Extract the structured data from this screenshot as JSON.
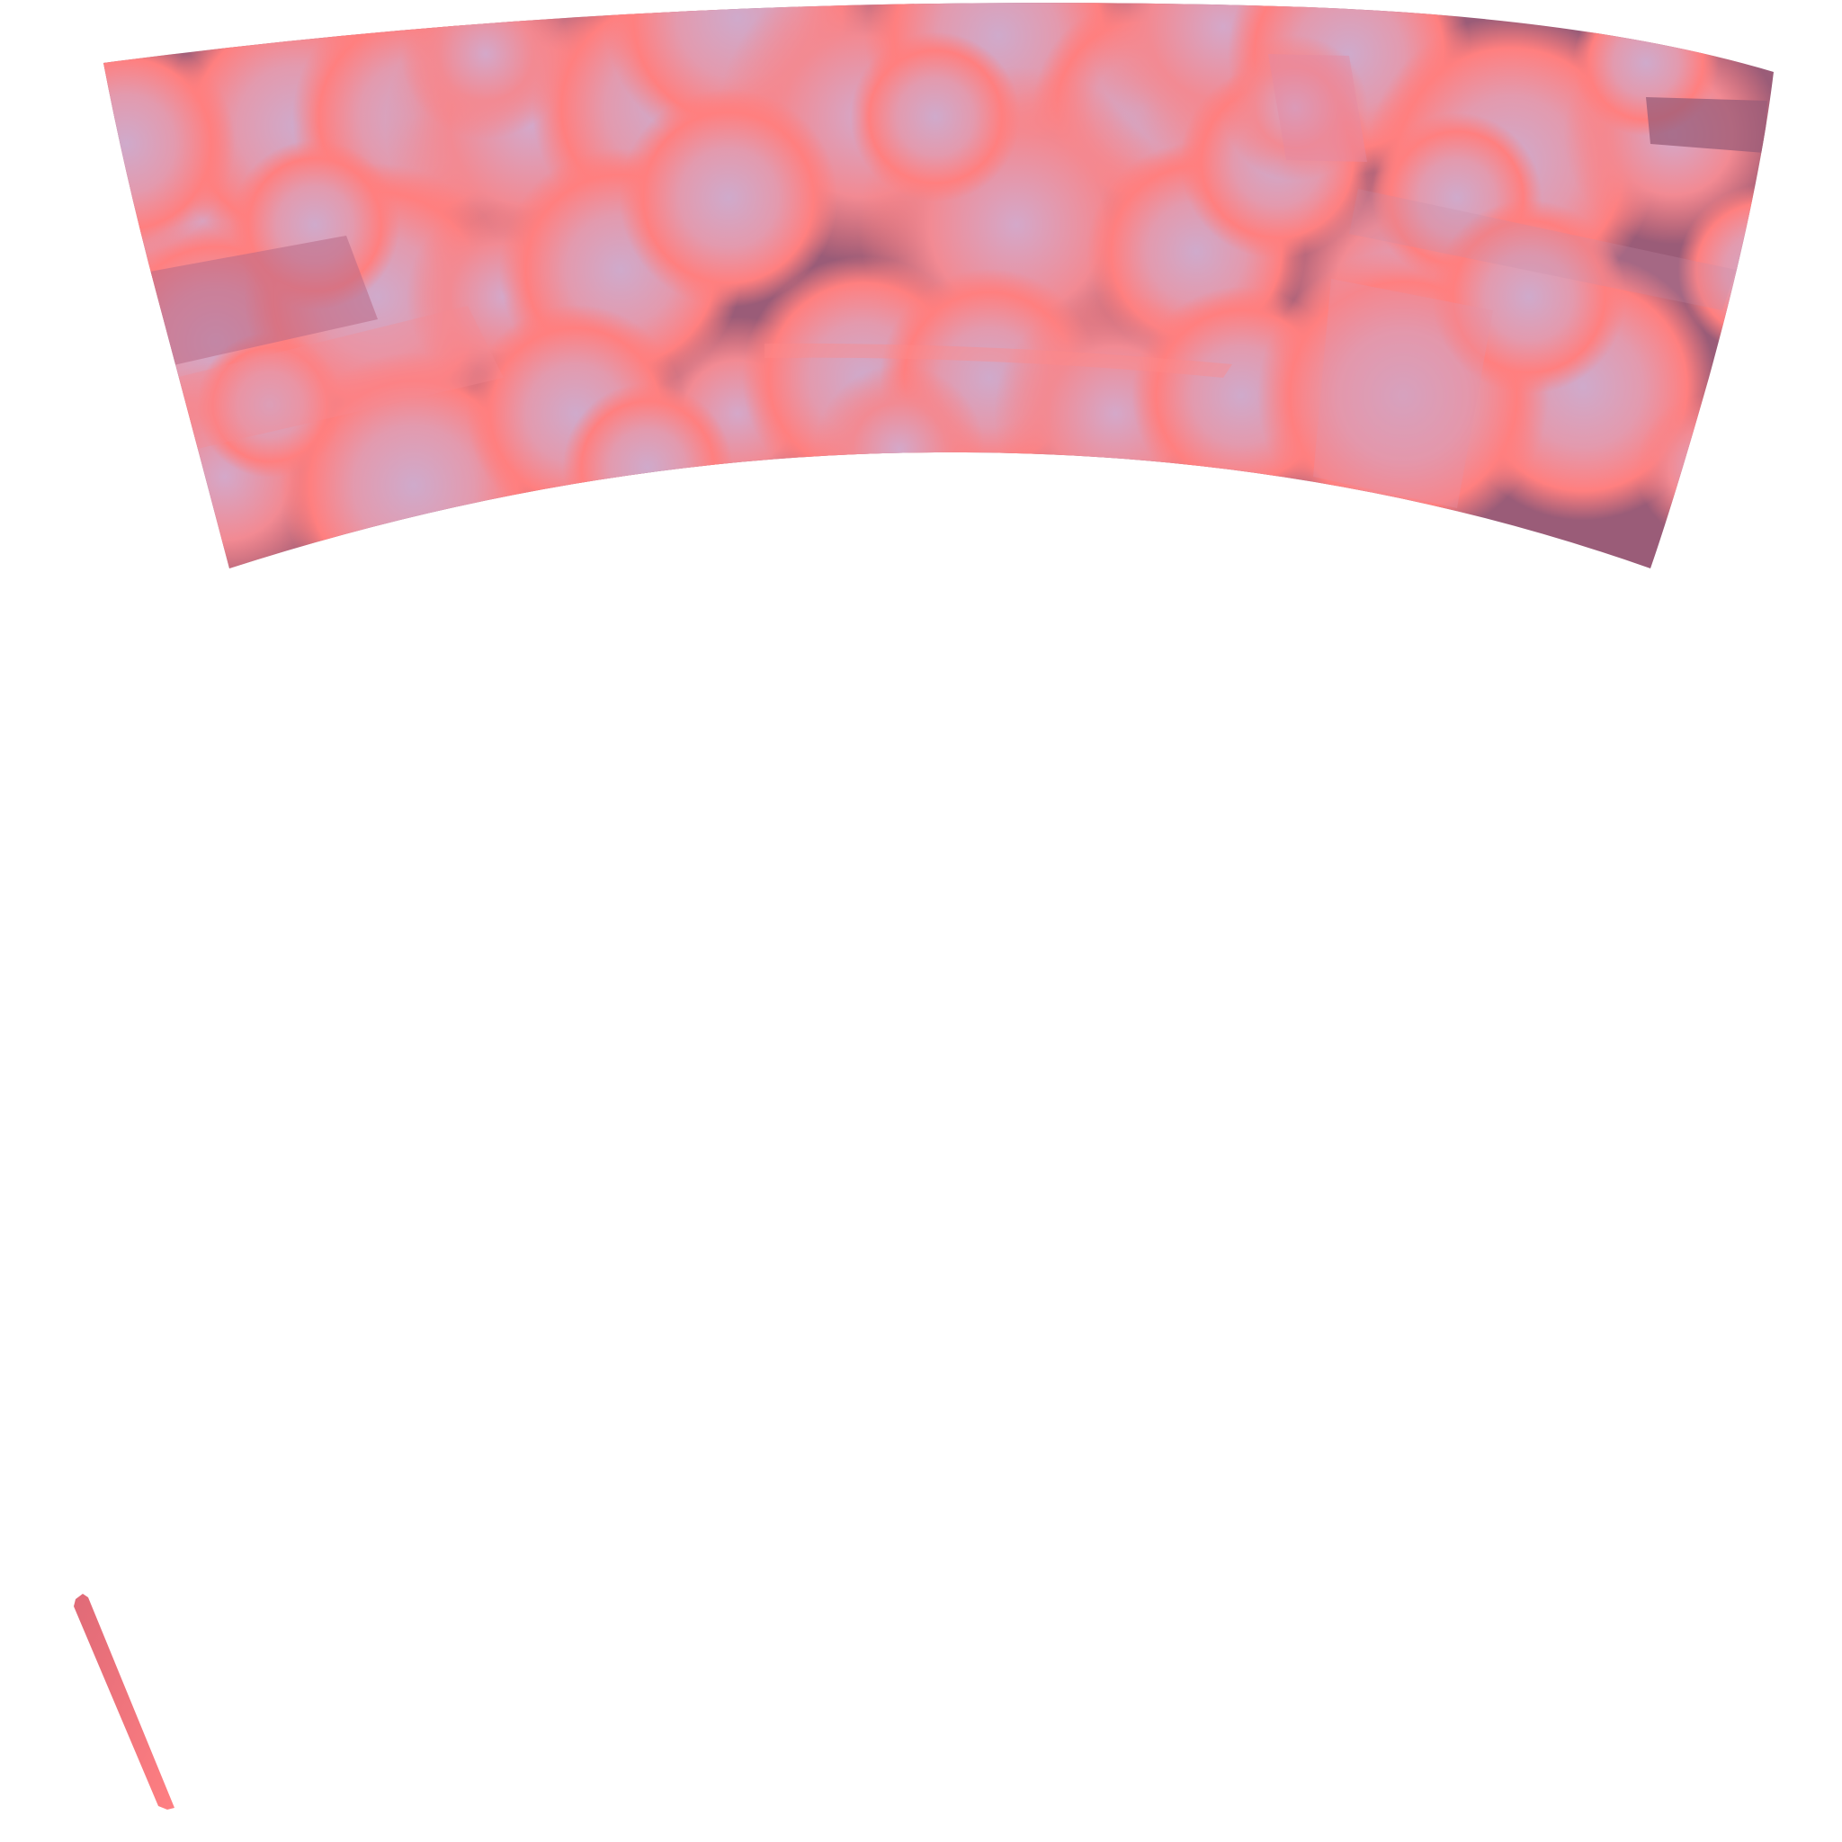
{
  "scene": {
    "subject": "uv-texture-atlas",
    "background_color": "#ffffff"
  },
  "palette": {
    "base": "#ff7f7f",
    "highlight": "#cfa6c8",
    "shadow": "#9a5c78",
    "deep_shadow": "#8c4f6a"
  },
  "icons": {
    "texture_band": "arc-band-shape",
    "sliver": "thin-strip-shape"
  }
}
